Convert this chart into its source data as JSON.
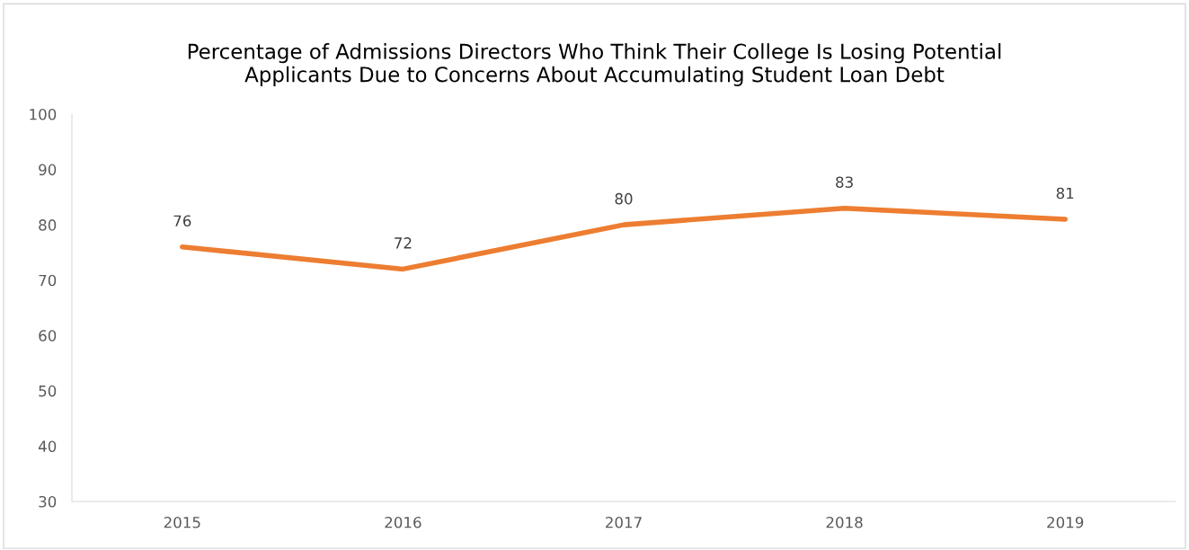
{
  "chart_data": {
    "type": "line",
    "title": "Percentage of Admissions Directors Who Think Their College Is Losing Potential\nApplicants Due to Concerns About Accumulating Student Loan Debt",
    "categories": [
      "2015",
      "2016",
      "2017",
      "2018",
      "2019"
    ],
    "series": [
      {
        "color": "#ed7d31",
        "values": [
          76,
          72,
          80,
          83,
          81
        ]
      }
    ],
    "ylim": [
      30,
      100
    ],
    "yticks": [
      30,
      40,
      50,
      60,
      70,
      80,
      90,
      100
    ],
    "data_labels": true,
    "grid": false,
    "legend": false,
    "marker": "none",
    "line_style": "solid"
  }
}
